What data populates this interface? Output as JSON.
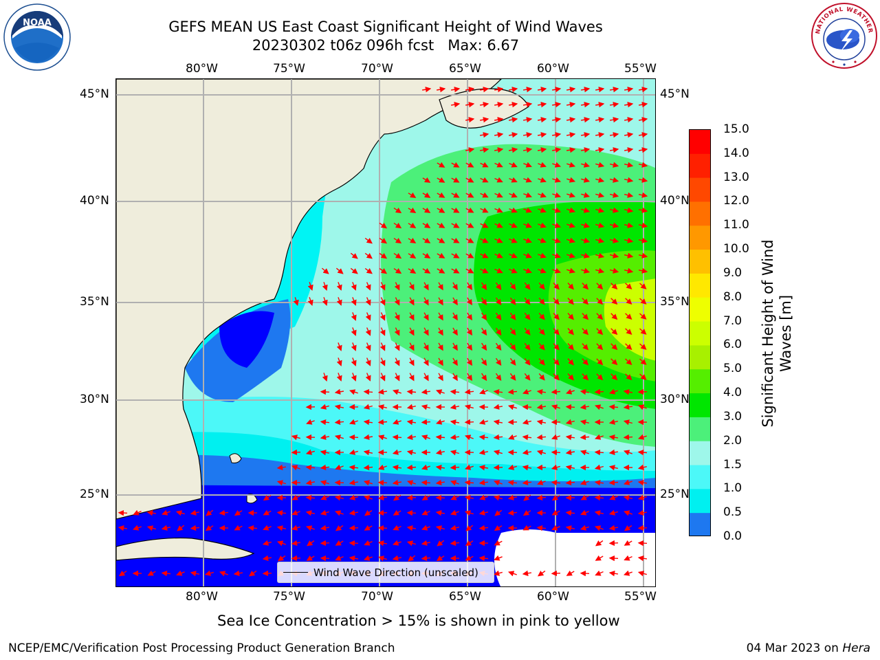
{
  "title": {
    "line1": "GEFS MEAN US East Coast Significant Height of Wind Waves",
    "line2": "20230302 t06z 096h fcst   Max: 6.67"
  },
  "logos": {
    "left": "NOAA",
    "right": "NATIONAL WEATHER SERVICE"
  },
  "axes": {
    "lon_ticks": [
      "80°W",
      "75°W",
      "70°W",
      "65°W",
      "60°W",
      "55°W"
    ],
    "lat_ticks": [
      "45°N",
      "40°N",
      "35°N",
      "30°N",
      "25°N"
    ]
  },
  "colorbar": {
    "label_line1": "Significant Height of Wind",
    "label_line2": "Waves [m]",
    "ticks": [
      "15.0",
      "14.0",
      "13.0",
      "12.0",
      "11.0",
      "10.0",
      "9.0",
      "8.0",
      "7.0",
      "6.0",
      "5.0",
      "4.0",
      "3.0",
      "2.0",
      "1.5",
      "1.0",
      "0.5",
      "0.0"
    ],
    "colors": [
      "#ff0000",
      "#ff2000",
      "#ff4800",
      "#ff7000",
      "#ff9800",
      "#ffc000",
      "#ffe800",
      "#eeff00",
      "#ccff00",
      "#a8f000",
      "#55ee00",
      "#00e600",
      "#4cf07a",
      "#9ef7ea",
      "#4cf8f8",
      "#00f0f0",
      "#1e78f0",
      "#0000ff"
    ]
  },
  "legend": {
    "label": "Wind Wave Direction (unscaled)"
  },
  "footer": {
    "note": "Sea Ice Concentration > 15% is shown in pink to yellow",
    "credit": "NCEP/EMC/Verification Post Processing Product Generation Branch",
    "date": "04 Mar 2023 on",
    "host": "Hera"
  },
  "map_data": {
    "max_value": 6.67,
    "lon_range": [
      -85,
      -54.3
    ],
    "lat_range": [
      20.5,
      45.9
    ],
    "colors": {
      "land": "#efeddc",
      "arrow": "#ff0000",
      "grid": "#b0b0b0"
    }
  }
}
